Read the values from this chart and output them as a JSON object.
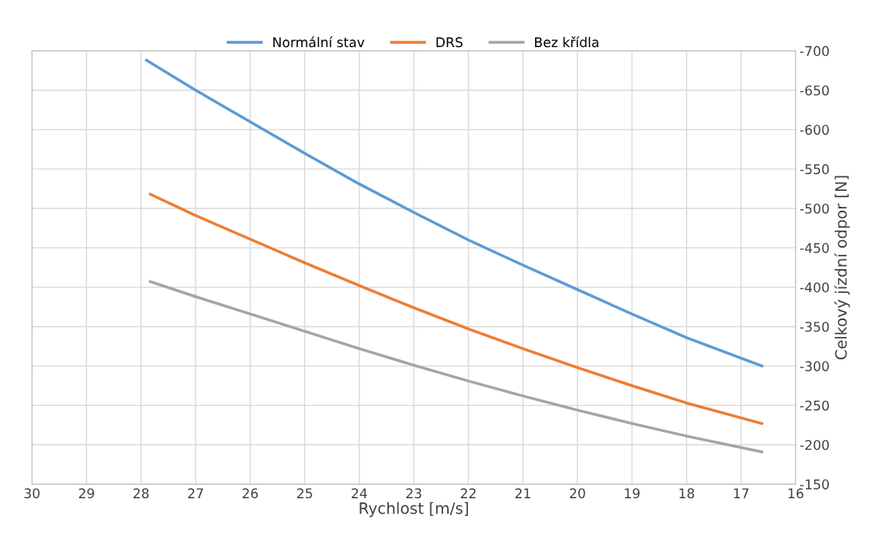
{
  "chart_data": {
    "type": "line",
    "xlabel": "Rychlost [m/s]",
    "ylabel": "Celkový jízdní odpor [N]",
    "xlim": [
      30,
      16
    ],
    "xticks": [
      30,
      29,
      28,
      27,
      26,
      25,
      24,
      23,
      22,
      21,
      20,
      19,
      18,
      17,
      16
    ],
    "ylim": [
      -150,
      -700
    ],
    "yticks": [
      -150,
      -200,
      -250,
      -300,
      -350,
      -400,
      -450,
      -500,
      -550,
      -600,
      -650,
      -700
    ],
    "grid": true,
    "legend": "top",
    "marker": "none",
    "line_style": "solid",
    "series": [
      {
        "name": "Normální stav",
        "color": "#5b9bd5",
        "x": [
          27.9,
          27,
          26,
          25,
          24,
          23,
          22,
          21,
          20,
          19,
          18,
          16.62
        ],
        "values": [
          -688,
          -650,
          -610,
          -570,
          -531,
          -495,
          -460,
          -428,
          -397,
          -366,
          -336,
          -300
        ]
      },
      {
        "name": "DRS",
        "color": "#ed7d31",
        "x": [
          27.83,
          27,
          26,
          25,
          24,
          23,
          22,
          21,
          20,
          19,
          18,
          16.62
        ],
        "values": [
          -518,
          -491,
          -461,
          -431,
          -402,
          -374,
          -347,
          -322,
          -298,
          -275,
          -253,
          -227
        ]
      },
      {
        "name": "Bez křídla",
        "color": "#a5a5a5",
        "x": [
          27.83,
          27,
          26,
          25,
          24,
          23,
          22,
          21,
          20,
          19,
          18,
          16.62
        ],
        "values": [
          -407,
          -388,
          -366,
          -344,
          -322,
          -301,
          -281,
          -262,
          -244,
          -227,
          -211,
          -191
        ]
      }
    ]
  }
}
